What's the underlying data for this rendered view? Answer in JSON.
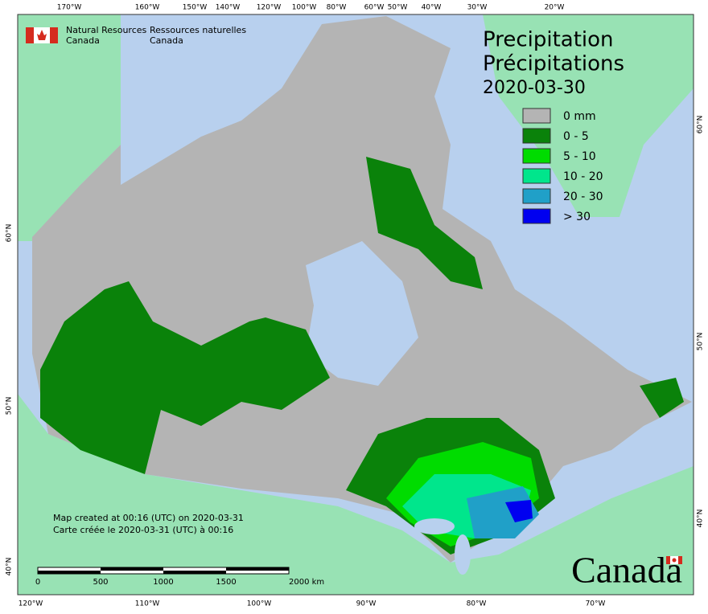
{
  "header": {
    "agency_en": [
      "Natural Resources",
      "Canada"
    ],
    "agency_fr": [
      "Ressources naturelles",
      "Canada"
    ]
  },
  "title": {
    "en": "Precipitation",
    "fr": "Précipitations",
    "date": "2020-03-30"
  },
  "legend": [
    {
      "label": "0 mm",
      "color": "#b4b4b4"
    },
    {
      "label": "0 - 5",
      "color": "#0a820a"
    },
    {
      "label": "5 - 10",
      "color": "#00dc00"
    },
    {
      "label": "10 - 20",
      "color": "#00e68c"
    },
    {
      "label": "20 - 30",
      "color": "#20a0c8"
    },
    {
      "label": "> 30",
      "color": "#0000f0"
    }
  ],
  "graticule": {
    "top": [
      "170°W",
      "160°W",
      "150°W",
      "140°W",
      "120°W",
      "100°W",
      "80°W",
      "60°W",
      "50°W",
      "40°W",
      "30°W",
      "20°W"
    ],
    "bottom": [
      "120°W",
      "110°W",
      "100°W",
      "90°W",
      "80°W",
      "70°W"
    ],
    "left": [
      "60°N",
      "50°N",
      "40°N"
    ],
    "right": [
      "60°N",
      "50°N",
      "40°N"
    ]
  },
  "credits": [
    "Map created at 00:16 (UTC) on 2020-03-31",
    "Carte créée le 2020-03-31 (UTC) à 00:16"
  ],
  "scale_bar": [
    "0",
    "500",
    "1000",
    "1500",
    "2000 km"
  ],
  "wordmark": "Canada"
}
